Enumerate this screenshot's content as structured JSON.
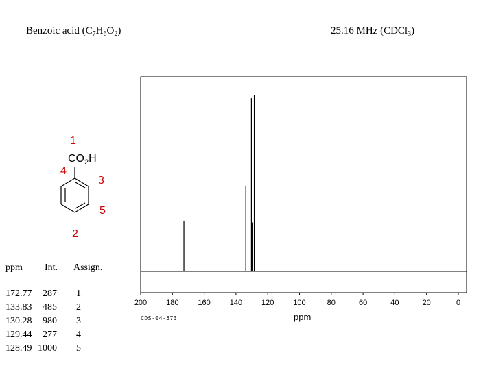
{
  "title": {
    "compound": "Benzoic acid",
    "formula_prefix": " (C",
    "sub1": "7",
    "h": "H",
    "sub2": "6",
    "o": "O",
    "sub3": "2",
    "formula_suffix": ")"
  },
  "frequency": {
    "prefix": "25.16 MHz (CDCl",
    "sub": "3",
    "suffix": ")"
  },
  "structure": {
    "labels": {
      "c1": "1",
      "group_co": "CO",
      "group_sub": "2",
      "group_h": "H",
      "c4": "4",
      "c3": "3",
      "c5": "5",
      "c2": "2"
    },
    "accent_color": "#cc0000"
  },
  "table": {
    "headers": {
      "ppm": "ppm",
      "int": "Int.",
      "assign": "Assign."
    },
    "rows": [
      {
        "ppm": "172.77",
        "int": "287",
        "assign": "1"
      },
      {
        "ppm": "133.83",
        "int": "485",
        "assign": "2"
      },
      {
        "ppm": "130.28",
        "int": "980",
        "assign": "3"
      },
      {
        "ppm": "129.44",
        "int": "277",
        "assign": "4"
      },
      {
        "ppm": "128.49",
        "int": "1000",
        "assign": "5"
      }
    ]
  },
  "sample_code": "CDS-04-573",
  "chart_data": {
    "type": "line",
    "xlabel": "ppm",
    "ylabel": "",
    "x_reversed": true,
    "xlim": [
      200,
      0
    ],
    "ylim": [
      0,
      1000
    ],
    "x_ticks": [
      "200",
      "180",
      "160",
      "140",
      "120",
      "100",
      "80",
      "60",
      "40",
      "20",
      "0"
    ],
    "x_tick_values": [
      200,
      180,
      160,
      140,
      120,
      100,
      80,
      60,
      40,
      20,
      0
    ],
    "peaks": [
      {
        "ppm": 172.77,
        "intensity": 287
      },
      {
        "ppm": 133.83,
        "intensity": 485
      },
      {
        "ppm": 130.28,
        "intensity": 980
      },
      {
        "ppm": 129.44,
        "intensity": 277
      },
      {
        "ppm": 128.49,
        "intensity": 1000
      }
    ],
    "grid": false,
    "line_color": "#000000"
  }
}
